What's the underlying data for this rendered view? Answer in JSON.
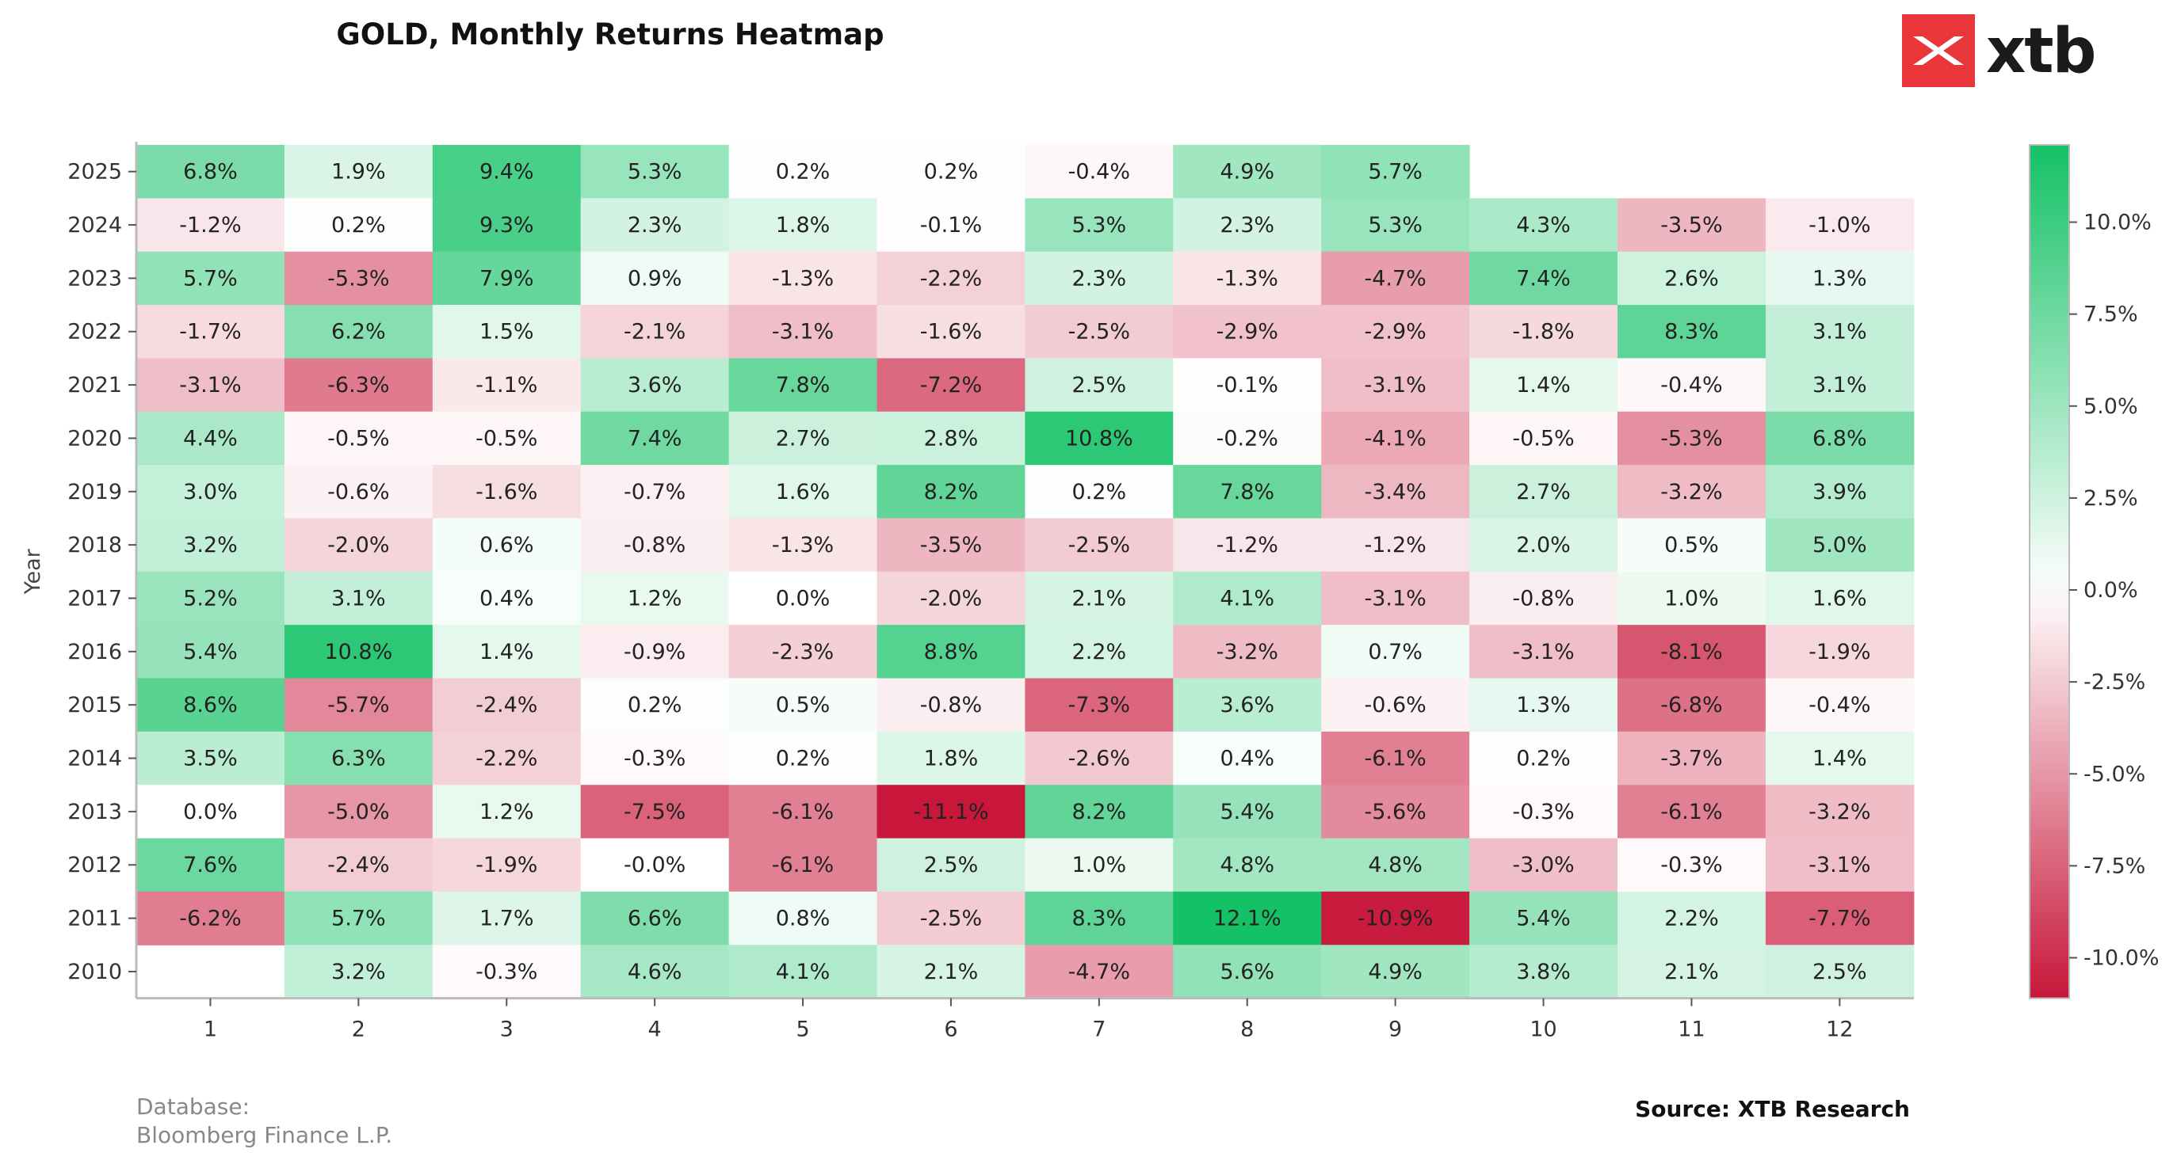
{
  "title": "GOLD, Monthly Returns Heatmap",
  "logo": {
    "text": "xtb",
    "color": "#e8363a"
  },
  "footer": {
    "database_label": "Database:",
    "database_value": "Bloomberg Finance L.P.",
    "source": "Source: XTB Research"
  },
  "colors": {
    "positive": "#14c166",
    "neutral": "#ffffff",
    "negative": "#c8173a"
  },
  "chart_data": {
    "type": "heatmap",
    "title": "GOLD, Monthly Returns Heatmap",
    "xlabel": "",
    "ylabel": "Year",
    "x_categories": [
      "1",
      "2",
      "3",
      "4",
      "5",
      "6",
      "7",
      "8",
      "9",
      "10",
      "11",
      "12"
    ],
    "y_categories": [
      "2025",
      "2024",
      "2023",
      "2022",
      "2021",
      "2020",
      "2019",
      "2018",
      "2017",
      "2016",
      "2015",
      "2014",
      "2013",
      "2012",
      "2011",
      "2010"
    ],
    "unit": "%",
    "color_range": [
      -11.1,
      12.1
    ],
    "colorbar_ticks": [
      "10.0%",
      "7.5%",
      "5.0%",
      "2.5%",
      "0.0%",
      "-2.5%",
      "-5.0%",
      "-7.5%",
      "-10.0%"
    ],
    "colorbar_tick_values": [
      10,
      7.5,
      5,
      2.5,
      0,
      -2.5,
      -5,
      -7.5,
      -10
    ],
    "values": [
      [
        6.8,
        1.9,
        9.4,
        5.3,
        0.2,
        0.2,
        -0.4,
        4.9,
        5.7,
        null,
        null,
        null
      ],
      [
        -1.2,
        0.2,
        9.3,
        2.3,
        1.8,
        -0.1,
        5.3,
        2.3,
        5.3,
        4.3,
        -3.5,
        -1.0
      ],
      [
        5.7,
        -5.3,
        7.9,
        0.9,
        -1.3,
        -2.2,
        2.3,
        -1.3,
        -4.7,
        7.4,
        2.6,
        1.3
      ],
      [
        -1.7,
        6.2,
        1.5,
        -2.1,
        -3.1,
        -1.6,
        -2.5,
        -2.9,
        -2.9,
        -1.8,
        8.3,
        3.1
      ],
      [
        -3.1,
        -6.3,
        -1.1,
        3.6,
        7.8,
        -7.2,
        2.5,
        -0.1,
        -3.1,
        1.4,
        -0.4,
        3.1
      ],
      [
        4.4,
        -0.5,
        -0.5,
        7.4,
        2.7,
        2.8,
        10.8,
        -0.2,
        -4.1,
        -0.5,
        -5.3,
        6.8
      ],
      [
        3.0,
        -0.6,
        -1.6,
        -0.7,
        1.6,
        8.2,
        0.2,
        7.8,
        -3.4,
        2.7,
        -3.2,
        3.9
      ],
      [
        3.2,
        -2.0,
        0.6,
        -0.8,
        -1.3,
        -3.5,
        -2.5,
        -1.2,
        -1.2,
        2.0,
        0.5,
        5.0
      ],
      [
        5.2,
        3.1,
        0.4,
        1.2,
        0.0,
        -2.0,
        2.1,
        4.1,
        -3.1,
        -0.8,
        1.0,
        1.6
      ],
      [
        5.4,
        10.8,
        1.4,
        -0.9,
        -2.3,
        8.8,
        2.2,
        -3.2,
        0.7,
        -3.1,
        -8.1,
        -1.9
      ],
      [
        8.6,
        -5.7,
        -2.4,
        0.2,
        0.5,
        -0.8,
        -7.3,
        3.6,
        -0.6,
        1.3,
        -6.8,
        -0.4
      ],
      [
        3.5,
        6.3,
        -2.2,
        -0.3,
        0.2,
        1.8,
        -2.6,
        0.4,
        -6.1,
        0.2,
        -3.7,
        1.4
      ],
      [
        0.0,
        -5.0,
        1.2,
        -7.5,
        -6.1,
        -11.1,
        8.2,
        5.4,
        -5.6,
        -0.3,
        -6.1,
        -3.2
      ],
      [
        7.6,
        -2.4,
        -1.9,
        -0.0,
        -6.1,
        2.5,
        1.0,
        4.8,
        4.8,
        -3.0,
        -0.3,
        -3.1
      ],
      [
        -6.2,
        5.7,
        1.7,
        6.6,
        0.8,
        -2.5,
        8.3,
        12.1,
        -10.9,
        5.4,
        2.2,
        -7.7
      ],
      [
        null,
        3.2,
        -0.3,
        4.6,
        4.1,
        2.1,
        -4.7,
        5.6,
        4.9,
        3.8,
        2.1,
        2.5
      ]
    ],
    "labels": [
      [
        "6.8%",
        "1.9%",
        "9.4%",
        "5.3%",
        "0.2%",
        "0.2%",
        "-0.4%",
        "4.9%",
        "5.7%",
        null,
        null,
        null
      ],
      [
        "-1.2%",
        "0.2%",
        "9.3%",
        "2.3%",
        "1.8%",
        "-0.1%",
        "5.3%",
        "2.3%",
        "5.3%",
        "4.3%",
        "-3.5%",
        "-1.0%"
      ],
      [
        "5.7%",
        "-5.3%",
        "7.9%",
        "0.9%",
        "-1.3%",
        "-2.2%",
        "2.3%",
        "-1.3%",
        "-4.7%",
        "7.4%",
        "2.6%",
        "1.3%"
      ],
      [
        "-1.7%",
        "6.2%",
        "1.5%",
        "-2.1%",
        "-3.1%",
        "-1.6%",
        "-2.5%",
        "-2.9%",
        "-2.9%",
        "-1.8%",
        "8.3%",
        "3.1%"
      ],
      [
        "-3.1%",
        "-6.3%",
        "-1.1%",
        "3.6%",
        "7.8%",
        "-7.2%",
        "2.5%",
        "-0.1%",
        "-3.1%",
        "1.4%",
        "-0.4%",
        "3.1%"
      ],
      [
        "4.4%",
        "-0.5%",
        "-0.5%",
        "7.4%",
        "2.7%",
        "2.8%",
        "10.8%",
        "-0.2%",
        "-4.1%",
        "-0.5%",
        "-5.3%",
        "6.8%"
      ],
      [
        "3.0%",
        "-0.6%",
        "-1.6%",
        "-0.7%",
        "1.6%",
        "8.2%",
        "0.2%",
        "7.8%",
        "-3.4%",
        "2.7%",
        "-3.2%",
        "3.9%"
      ],
      [
        "3.2%",
        "-2.0%",
        "0.6%",
        "-0.8%",
        "-1.3%",
        "-3.5%",
        "-2.5%",
        "-1.2%",
        "-1.2%",
        "2.0%",
        "0.5%",
        "5.0%"
      ],
      [
        "5.2%",
        "3.1%",
        "0.4%",
        "1.2%",
        "0.0%",
        "-2.0%",
        "2.1%",
        "4.1%",
        "-3.1%",
        "-0.8%",
        "1.0%",
        "1.6%"
      ],
      [
        "5.4%",
        "10.8%",
        "1.4%",
        "-0.9%",
        "-2.3%",
        "8.8%",
        "2.2%",
        "-3.2%",
        "0.7%",
        "-3.1%",
        "-8.1%",
        "-1.9%"
      ],
      [
        "8.6%",
        "-5.7%",
        "-2.4%",
        "0.2%",
        "0.5%",
        "-0.8%",
        "-7.3%",
        "3.6%",
        "-0.6%",
        "1.3%",
        "-6.8%",
        "-0.4%"
      ],
      [
        "3.5%",
        "6.3%",
        "-2.2%",
        "-0.3%",
        "0.2%",
        "1.8%",
        "-2.6%",
        "0.4%",
        "-6.1%",
        "0.2%",
        "-3.7%",
        "1.4%"
      ],
      [
        "0.0%",
        "-5.0%",
        "1.2%",
        "-7.5%",
        "-6.1%",
        "-11.1%",
        "8.2%",
        "5.4%",
        "-5.6%",
        "-0.3%",
        "-6.1%",
        "-3.2%"
      ],
      [
        "7.6%",
        "-2.4%",
        "-1.9%",
        "-0.0%",
        "-6.1%",
        "2.5%",
        "1.0%",
        "4.8%",
        "4.8%",
        "-3.0%",
        "-0.3%",
        "-3.1%"
      ],
      [
        "-6.2%",
        "5.7%",
        "1.7%",
        "6.6%",
        "0.8%",
        "-2.5%",
        "8.3%",
        "12.1%",
        "-10.9%",
        "5.4%",
        "2.2%",
        "-7.7%"
      ],
      [
        null,
        "3.2%",
        "-0.3%",
        "4.6%",
        "4.1%",
        "2.1%",
        "-4.7%",
        "5.6%",
        "4.9%",
        "3.8%",
        "2.1%",
        "2.5%"
      ]
    ]
  }
}
